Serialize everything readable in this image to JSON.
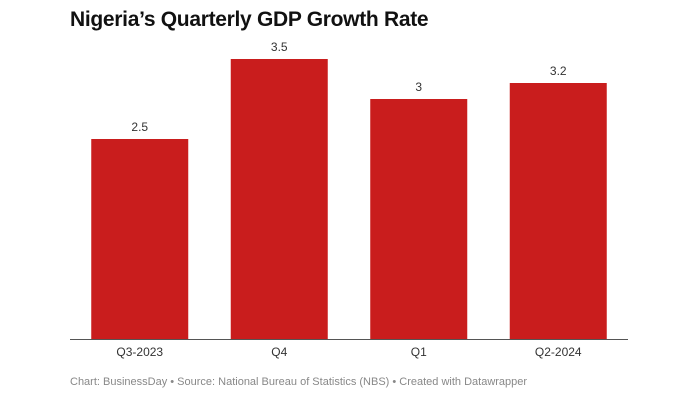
{
  "chart_data": {
    "type": "bar",
    "title": "Nigeria’s Quarterly GDP Growth Rate",
    "categories": [
      "Q3-2023",
      "Q4",
      "Q1",
      "Q2-2024"
    ],
    "values": [
      2.5,
      3.5,
      3,
      3.2
    ],
    "data_labels": [
      "2.5",
      "3.5",
      "3",
      "3.2"
    ],
    "ylim": [
      0,
      3.5
    ],
    "grid": false,
    "bar_color": "#c91d1d"
  },
  "footer": "Chart: BusinessDay • Source: National Bureau of Statistics (NBS) • Created with Datawrapper"
}
